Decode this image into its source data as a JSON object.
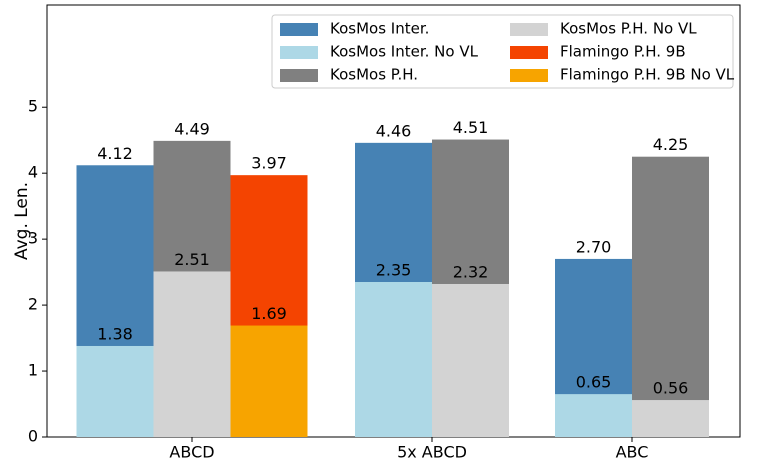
{
  "chart_data": {
    "type": "bar",
    "y_label": "Avg. Len.",
    "categories": [
      "ABCD",
      "5x ABCD",
      "ABC"
    ],
    "series": [
      {
        "name": "KosMos Inter.",
        "color": "#4682b4",
        "values": [
          4.12,
          4.46,
          2.7
        ],
        "value_labels": [
          "4.12",
          "4.46",
          "2.70"
        ]
      },
      {
        "name": "KosMos Inter. No VL",
        "color": "#add8e6",
        "values": [
          1.38,
          2.35,
          0.65
        ],
        "value_labels": [
          "1.38",
          "2.35",
          "0.65"
        ]
      },
      {
        "name": "KosMos P.H.",
        "color": "#808080",
        "values": [
          4.49,
          4.51,
          4.25
        ],
        "value_labels": [
          "4.49",
          "4.51",
          "4.25"
        ]
      },
      {
        "name": "KosMos P.H. No VL",
        "color": "#d3d3d3",
        "values": [
          2.51,
          2.32,
          0.56
        ],
        "value_labels": [
          "2.51",
          "2.32",
          "0.56"
        ]
      },
      {
        "name": "Flamingo P.H. 9B",
        "color": "#f44401",
        "values": [
          3.97,
          null,
          null
        ],
        "value_labels": [
          "3.97",
          null,
          null
        ]
      },
      {
        "name": "Flamingo P.H. 9B No VL",
        "color": "#f7a400",
        "values": [
          1.69,
          null,
          null
        ],
        "value_labels": [
          "1.69",
          null,
          null
        ]
      }
    ],
    "ylim": [
      0,
      6.55
    ],
    "yticks": [
      0,
      1,
      2,
      3,
      4,
      5
    ],
    "legend": "top-right"
  }
}
